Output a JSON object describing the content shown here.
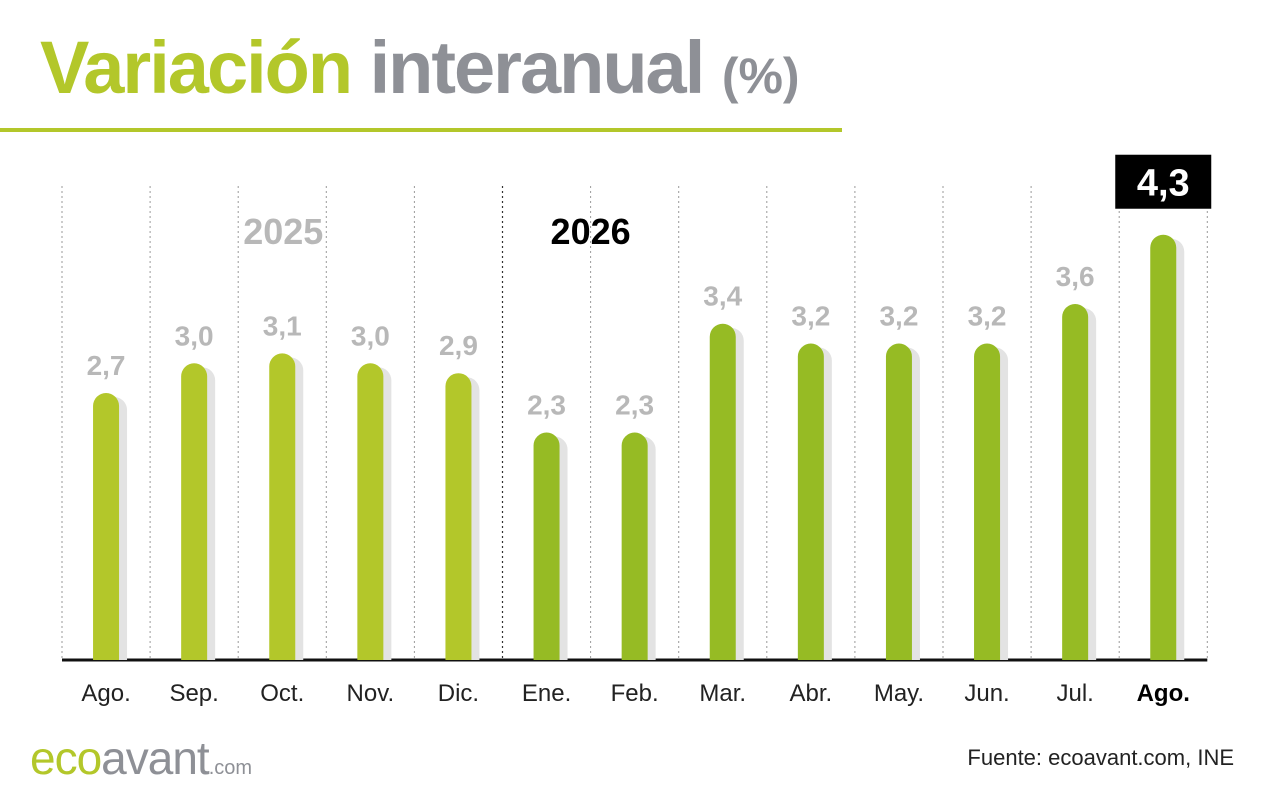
{
  "header": {
    "title_green": "Variación",
    "title_gray": "interanual",
    "title_unit": "(%)"
  },
  "chart_data": {
    "type": "bar",
    "title": "Variación interanual (%)",
    "categories": [
      "Ago.",
      "Sep.",
      "Oct.",
      "Nov.",
      "Dic.",
      "Ene.",
      "Feb.",
      "Mar.",
      "Abr.",
      "May.",
      "Jun.",
      "Jul.",
      "Ago."
    ],
    "values": [
      2.7,
      3.0,
      3.1,
      3.0,
      2.9,
      2.3,
      2.3,
      3.4,
      3.2,
      3.2,
      3.2,
      3.6,
      4.3
    ],
    "value_labels": [
      "2,7",
      "3,0",
      "3,1",
      "3,0",
      "2,9",
      "2,3",
      "2,3",
      "3,4",
      "3,2",
      "3,2",
      "3,2",
      "3,6",
      "4,3"
    ],
    "year_groups": [
      {
        "label": "2025",
        "start_index": 0,
        "end_index": 4,
        "bar_color": "#b3c72a",
        "label_color": "#b8b8b8"
      },
      {
        "label": "2026",
        "start_index": 5,
        "end_index": 12,
        "bar_color": "#96bb24",
        "label_color": "#000000"
      }
    ],
    "highlight_index": 12,
    "value_label_color": "#b8b8b8",
    "highlight_label_bg": "#000000",
    "highlight_label_color": "#ffffff",
    "bar_shadow_color": "#e3e3e3",
    "axis_color": "#111111",
    "grid": "vertical dotted separators",
    "ylim": [
      0,
      4.6
    ],
    "xlabel": "",
    "ylabel": ""
  },
  "footer": {
    "brand_part1": "eco",
    "brand_part2": "avant",
    "brand_suffix": ".com",
    "source": "Fuente: ecoavant.com, INE"
  }
}
